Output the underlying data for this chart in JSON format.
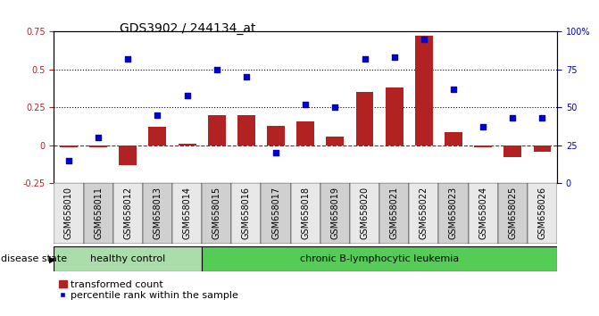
{
  "title": "GDS3902 / 244134_at",
  "samples": [
    "GSM658010",
    "GSM658011",
    "GSM658012",
    "GSM658013",
    "GSM658014",
    "GSM658015",
    "GSM658016",
    "GSM658017",
    "GSM658018",
    "GSM658019",
    "GSM658020",
    "GSM658021",
    "GSM658022",
    "GSM658023",
    "GSM658024",
    "GSM658025",
    "GSM658026"
  ],
  "bar_values": [
    -0.01,
    -0.01,
    -0.13,
    0.12,
    0.01,
    0.2,
    0.2,
    0.13,
    0.16,
    0.06,
    0.35,
    0.38,
    0.72,
    0.09,
    -0.01,
    -0.08,
    -0.04
  ],
  "dot_values": [
    15,
    30,
    82,
    45,
    58,
    75,
    70,
    20,
    52,
    50,
    82,
    83,
    95,
    62,
    37,
    43,
    43
  ],
  "healthy_count": 5,
  "ylim_left": [
    -0.25,
    0.75
  ],
  "ylim_right": [
    0,
    100
  ],
  "yticks_left": [
    -0.25,
    0.0,
    0.25,
    0.5,
    0.75
  ],
  "ytick_labels_left": [
    "-0.25",
    "0",
    "0.25",
    "0.5",
    "0.75"
  ],
  "yticks_right": [
    0,
    25,
    50,
    75,
    100
  ],
  "ytick_labels_right": [
    "0",
    "25",
    "50",
    "75",
    "100%"
  ],
  "hlines": [
    0.25,
    0.5
  ],
  "bar_color": "#B22222",
  "dot_color": "#0000CC",
  "zero_line_color": "#CC0000",
  "hline_color": "#000000",
  "healthy_bg": "#AADDAA",
  "leukemia_bg": "#55CC55",
  "healthy_label": "healthy control",
  "leukemia_label": "chronic B-lymphocytic leukemia",
  "disease_state_label": "disease state",
  "legend_bar": "transformed count",
  "legend_dot": "percentile rank within the sample",
  "tick_fontsize": 7,
  "label_fontsize": 8,
  "title_fontsize": 10
}
